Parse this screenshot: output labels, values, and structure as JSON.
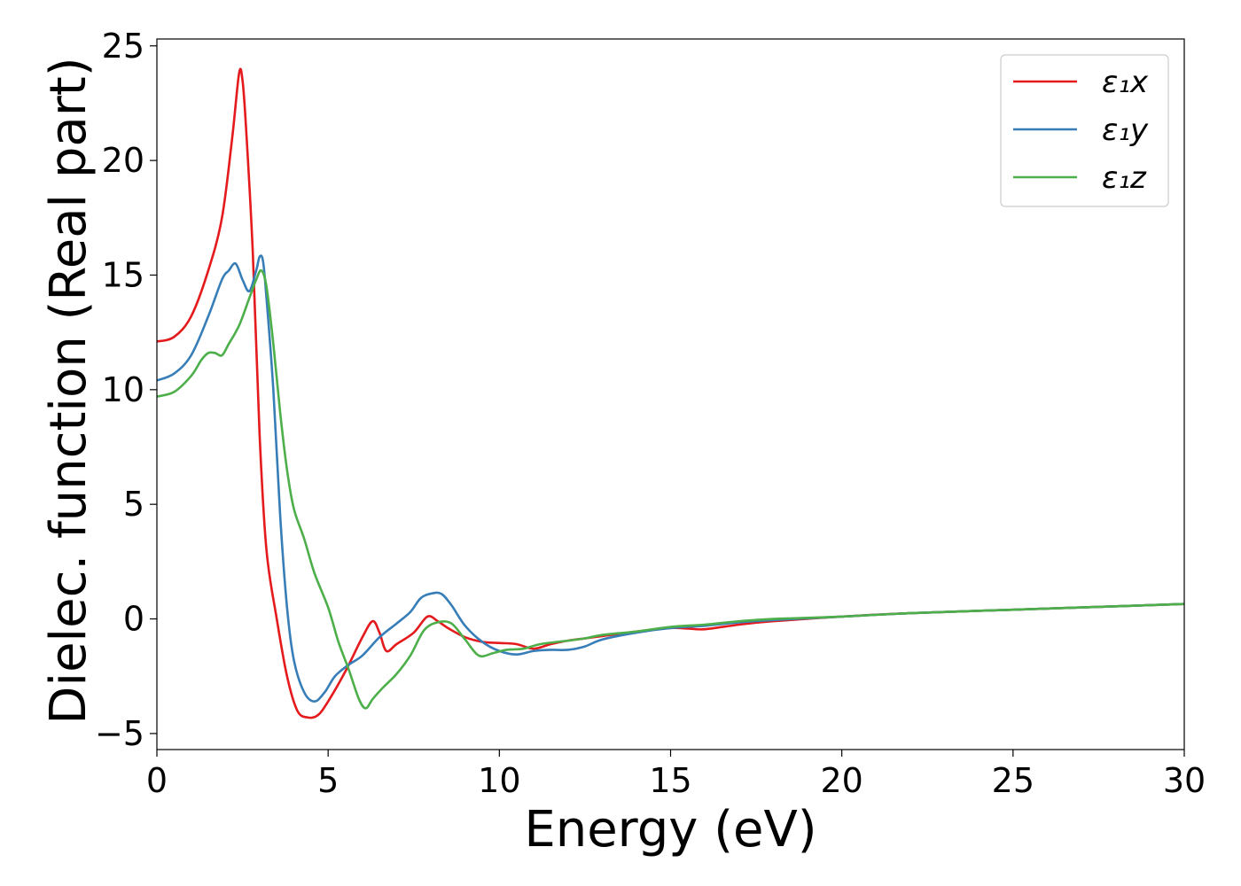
{
  "chart_data": {
    "type": "line",
    "title": "",
    "xlabel": "Energy (eV)",
    "ylabel": "Dielec. function (Real part)",
    "xlim": [
      0,
      30
    ],
    "ylim": [
      -5.7,
      25.3
    ],
    "xticks": [
      0,
      5,
      10,
      15,
      20,
      25,
      30
    ],
    "xtick_labels": [
      "0",
      "5",
      "10",
      "15",
      "20",
      "25",
      "30"
    ],
    "yticks": [
      -5,
      0,
      5,
      10,
      15,
      20,
      25
    ],
    "ytick_labels": [
      "−5",
      "0",
      "5",
      "10",
      "15",
      "20",
      "25"
    ],
    "grid": false,
    "legend_position": "top-right",
    "series": [
      {
        "name": "ε₁x",
        "color": "#e41a1c",
        "points": [
          [
            0,
            12.1
          ],
          [
            0.5,
            12.3
          ],
          [
            1,
            13.2
          ],
          [
            1.5,
            15.2
          ],
          [
            1.9,
            17.5
          ],
          [
            2.2,
            21
          ],
          [
            2.4,
            23.8
          ],
          [
            2.5,
            23.5
          ],
          [
            2.6,
            21.5
          ],
          [
            2.8,
            16
          ],
          [
            3,
            8
          ],
          [
            3.2,
            3
          ],
          [
            3.5,
            0
          ],
          [
            3.8,
            -2.5
          ],
          [
            4.1,
            -4
          ],
          [
            4.4,
            -4.3
          ],
          [
            4.7,
            -4.2
          ],
          [
            5,
            -3.6
          ],
          [
            5.5,
            -2.3
          ],
          [
            6,
            -0.8
          ],
          [
            6.3,
            -0.1
          ],
          [
            6.5,
            -0.6
          ],
          [
            6.7,
            -1.4
          ],
          [
            7,
            -1.1
          ],
          [
            7.5,
            -0.6
          ],
          [
            7.9,
            0.1
          ],
          [
            8.2,
            -0.1
          ],
          [
            8.5,
            -0.4
          ],
          [
            9,
            -0.8
          ],
          [
            9.5,
            -1
          ],
          [
            10,
            -1.05
          ],
          [
            10.5,
            -1.1
          ],
          [
            11,
            -1.3
          ],
          [
            11.5,
            -1.1
          ],
          [
            12,
            -0.95
          ],
          [
            12.5,
            -0.85
          ],
          [
            13,
            -0.75
          ],
          [
            14,
            -0.55
          ],
          [
            15,
            -0.4
          ],
          [
            15.5,
            -0.42
          ],
          [
            16,
            -0.45
          ],
          [
            17,
            -0.25
          ],
          [
            18,
            -0.1
          ],
          [
            20,
            0.1
          ],
          [
            22,
            0.25
          ],
          [
            25,
            0.4
          ],
          [
            28,
            0.55
          ],
          [
            30,
            0.65
          ]
        ]
      },
      {
        "name": "ε₁y",
        "color": "#377eb8",
        "points": [
          [
            0,
            10.4
          ],
          [
            0.5,
            10.7
          ],
          [
            1,
            11.5
          ],
          [
            1.5,
            13.2
          ],
          [
            1.9,
            14.8
          ],
          [
            2.1,
            15.2
          ],
          [
            2.3,
            15.5
          ],
          [
            2.5,
            14.8
          ],
          [
            2.7,
            14.3
          ],
          [
            2.9,
            15.2
          ],
          [
            3,
            15.8
          ],
          [
            3.1,
            15.6
          ],
          [
            3.2,
            14
          ],
          [
            3.4,
            10
          ],
          [
            3.6,
            4.5
          ],
          [
            3.8,
            0.5
          ],
          [
            4,
            -1.8
          ],
          [
            4.3,
            -3.2
          ],
          [
            4.6,
            -3.6
          ],
          [
            4.9,
            -3.2
          ],
          [
            5.2,
            -2.5
          ],
          [
            5.6,
            -2
          ],
          [
            6,
            -1.6
          ],
          [
            6.5,
            -0.8
          ],
          [
            7,
            -0.2
          ],
          [
            7.4,
            0.3
          ],
          [
            7.7,
            0.9
          ],
          [
            8,
            1.1
          ],
          [
            8.3,
            1.1
          ],
          [
            8.6,
            0.6
          ],
          [
            9,
            -0.3
          ],
          [
            9.5,
            -1
          ],
          [
            10,
            -1.4
          ],
          [
            10.5,
            -1.55
          ],
          [
            11,
            -1.4
          ],
          [
            11.5,
            -1.35
          ],
          [
            12,
            -1.35
          ],
          [
            12.5,
            -1.2
          ],
          [
            13,
            -0.9
          ],
          [
            14,
            -0.6
          ],
          [
            15,
            -0.4
          ],
          [
            16,
            -0.3
          ],
          [
            17,
            -0.15
          ],
          [
            18,
            -0.05
          ],
          [
            20,
            0.1
          ],
          [
            22,
            0.25
          ],
          [
            25,
            0.4
          ],
          [
            28,
            0.55
          ],
          [
            30,
            0.65
          ]
        ]
      },
      {
        "name": "ε₁z",
        "color": "#4daf4a",
        "points": [
          [
            0,
            9.7
          ],
          [
            0.5,
            9.9
          ],
          [
            1,
            10.6
          ],
          [
            1.3,
            11.3
          ],
          [
            1.5,
            11.6
          ],
          [
            1.7,
            11.6
          ],
          [
            1.9,
            11.5
          ],
          [
            2.1,
            12
          ],
          [
            2.4,
            12.8
          ],
          [
            2.7,
            14
          ],
          [
            2.9,
            14.8
          ],
          [
            3.05,
            15.2
          ],
          [
            3.2,
            14.5
          ],
          [
            3.4,
            12
          ],
          [
            3.6,
            9
          ],
          [
            3.8,
            6.5
          ],
          [
            4,
            4.8
          ],
          [
            4.3,
            3.5
          ],
          [
            4.6,
            2
          ],
          [
            5,
            0.5
          ],
          [
            5.3,
            -1
          ],
          [
            5.6,
            -2.2
          ],
          [
            5.9,
            -3.5
          ],
          [
            6.1,
            -3.9
          ],
          [
            6.3,
            -3.5
          ],
          [
            6.6,
            -3
          ],
          [
            7,
            -2.4
          ],
          [
            7.4,
            -1.6
          ],
          [
            7.8,
            -0.5
          ],
          [
            8.2,
            -0.15
          ],
          [
            8.6,
            -0.2
          ],
          [
            9,
            -0.9
          ],
          [
            9.4,
            -1.6
          ],
          [
            9.8,
            -1.5
          ],
          [
            10.2,
            -1.35
          ],
          [
            10.7,
            -1.3
          ],
          [
            11.2,
            -1.1
          ],
          [
            12,
            -0.95
          ],
          [
            12.5,
            -0.85
          ],
          [
            13,
            -0.7
          ],
          [
            14,
            -0.55
          ],
          [
            15,
            -0.35
          ],
          [
            16,
            -0.25
          ],
          [
            17,
            -0.1
          ],
          [
            18,
            0
          ],
          [
            20,
            0.1
          ],
          [
            22,
            0.25
          ],
          [
            25,
            0.4
          ],
          [
            28,
            0.55
          ],
          [
            30,
            0.65
          ]
        ]
      }
    ]
  }
}
